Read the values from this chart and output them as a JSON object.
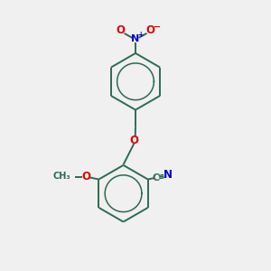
{
  "background_color": "#f0f0f0",
  "bond_color": "#2d6b52",
  "o_color": "#e00000",
  "n_color": "#0000cc",
  "figsize": [
    3.0,
    3.0
  ],
  "dpi": 100,
  "xlim": [
    0,
    10
  ],
  "ylim": [
    0,
    10
  ]
}
